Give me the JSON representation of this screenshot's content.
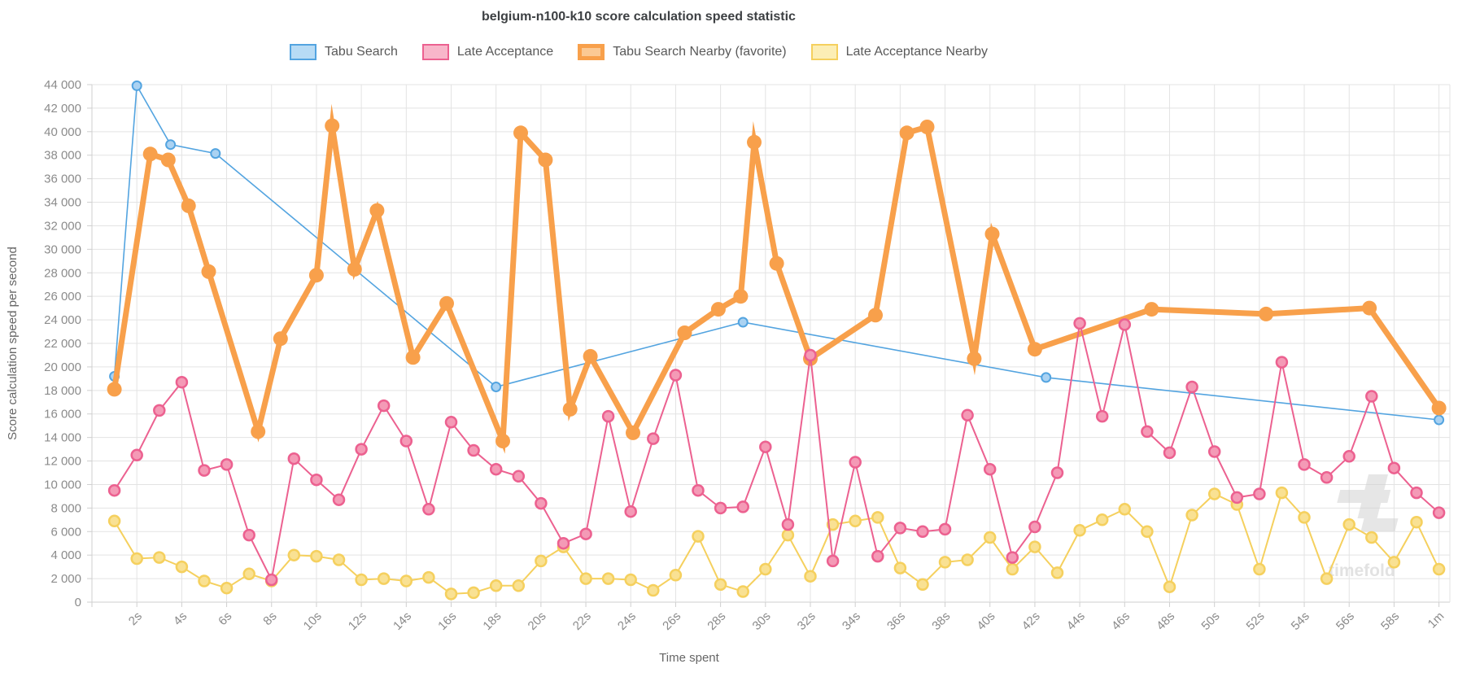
{
  "watermark": "timefold",
  "chart_data": {
    "type": "line",
    "title": "belgium-n100-k10 score calculation speed statistic",
    "xlabel": "Time spent",
    "ylabel": "Score calculation speed per second",
    "xlim_seconds": [
      0,
      60.5
    ],
    "ylim": [
      0,
      44000
    ],
    "y_tick_step": 2000,
    "grid": true,
    "legend_position": "top",
    "x_tick_seconds": [
      2,
      4,
      6,
      8,
      10,
      12,
      14,
      16,
      18,
      20,
      22,
      24,
      26,
      28,
      30,
      32,
      34,
      36,
      38,
      40,
      42,
      44,
      46,
      48,
      50,
      52,
      54,
      56,
      58,
      60
    ],
    "x_tick_labels": [
      "2s",
      "4s",
      "6s",
      "8s",
      "10s",
      "12s",
      "14s",
      "16s",
      "18s",
      "20s",
      "22s",
      "24s",
      "26s",
      "28s",
      "30s",
      "32s",
      "34s",
      "36s",
      "38s",
      "40s",
      "42s",
      "44s",
      "46s",
      "48s",
      "50s",
      "52s",
      "54s",
      "56s",
      "58s",
      "1m"
    ],
    "series": [
      {
        "name": "Tabu Search",
        "color": "#53a4e0",
        "point_fill": "#aad2f2",
        "legend_fill": "#b7dbf5",
        "swatch_border": 2,
        "line_width": 1.6,
        "point_radius": 5.5,
        "point_stroke": 2,
        "points": [
          [
            1,
            19200
          ],
          [
            2,
            43900
          ],
          [
            3.5,
            38900
          ],
          [
            5.5,
            38150
          ],
          [
            18,
            18300
          ],
          [
            29,
            23800
          ],
          [
            42.5,
            19100
          ],
          [
            60,
            15500
          ]
        ]
      },
      {
        "name": "Tabu Search Nearby (favorite)",
        "color": "#f8a04b",
        "point_fill": "#f8a04b",
        "legend_fill": "#fbc994",
        "swatch_border": 5,
        "line_width": 7,
        "point_radius": 9,
        "point_stroke": 0,
        "points": [
          [
            1,
            18100
          ],
          [
            2.6,
            38100
          ],
          [
            3.4,
            37600
          ],
          [
            4.3,
            33700
          ],
          [
            5.2,
            28100
          ],
          [
            7.4,
            14500
          ],
          [
            8.4,
            22400
          ],
          [
            10,
            27800
          ],
          [
            10.7,
            40500
          ],
          [
            11.7,
            28300
          ],
          [
            12.7,
            33300
          ],
          [
            14.3,
            20800
          ],
          [
            15.8,
            25400
          ],
          [
            18.3,
            13700
          ],
          [
            19.1,
            39900
          ],
          [
            20.2,
            37600
          ],
          [
            21.3,
            16400
          ],
          [
            22.2,
            20900
          ],
          [
            24.1,
            14400
          ],
          [
            26.4,
            22900
          ],
          [
            27.9,
            24900
          ],
          [
            28.9,
            26000
          ],
          [
            29.5,
            39100
          ],
          [
            30.5,
            28800
          ],
          [
            32,
            20700
          ],
          [
            34.9,
            24400
          ],
          [
            36.3,
            39900
          ],
          [
            37.2,
            40400
          ],
          [
            39.3,
            20700
          ],
          [
            40.1,
            31300
          ],
          [
            42,
            21500
          ],
          [
            47.2,
            24900
          ],
          [
            52.3,
            24500
          ],
          [
            56.9,
            25000
          ],
          [
            60,
            16500
          ]
        ]
      },
      {
        "name": "Late Acceptance Nearby",
        "color": "#f5d05e",
        "point_fill": "#f9e193",
        "legend_fill": "#fceeb5",
        "swatch_border": 2,
        "line_width": 2,
        "point_radius": 6.5,
        "point_stroke": 2.5,
        "t_start": 1,
        "t_step": 1,
        "values": [
          6900,
          3700,
          3800,
          3000,
          1800,
          1200,
          2400,
          1800,
          4000,
          3900,
          3600,
          1900,
          2000,
          1800,
          2100,
          700,
          800,
          1400,
          1400,
          3500,
          4700,
          2000,
          2000,
          1900,
          1000,
          2300,
          5600,
          1500,
          900,
          2800,
          5700,
          2200,
          6600,
          6900,
          7200,
          2900,
          1500,
          3400,
          3600,
          5500,
          2800,
          4700,
          2500,
          6100,
          7000,
          7900,
          6000,
          1300,
          7400,
          9200,
          8300,
          2800,
          9300,
          7200,
          2000,
          6600,
          5500,
          3400,
          6800,
          2800
        ]
      },
      {
        "name": "Late Acceptance",
        "color": "#ec6190",
        "point_fill": "#f49ab6",
        "legend_fill": "#f8b6ca",
        "swatch_border": 2,
        "line_width": 2,
        "point_radius": 6.5,
        "point_stroke": 2.5,
        "t_start": 1,
        "t_step": 1,
        "values": [
          9500,
          12500,
          16300,
          18700,
          11200,
          11700,
          5700,
          1900,
          12200,
          10400,
          8700,
          13000,
          16700,
          13700,
          7900,
          15300,
          12900,
          11300,
          10700,
          8400,
          5000,
          5800,
          15800,
          7700,
          13900,
          19300,
          9500,
          8000,
          8100,
          13200,
          6600,
          21000,
          3500,
          11900,
          3900,
          6300,
          6000,
          6200,
          15900,
          11300,
          3800,
          6400,
          11000,
          23700,
          15800,
          23600,
          14500,
          12700,
          18300,
          12800,
          8900,
          9200,
          20400,
          11700,
          10600,
          12400,
          17500,
          11400,
          9300,
          7600
        ]
      }
    ],
    "legend_order": [
      "Tabu Search",
      "Late Acceptance",
      "Tabu Search Nearby (favorite)",
      "Late Acceptance Nearby"
    ]
  }
}
